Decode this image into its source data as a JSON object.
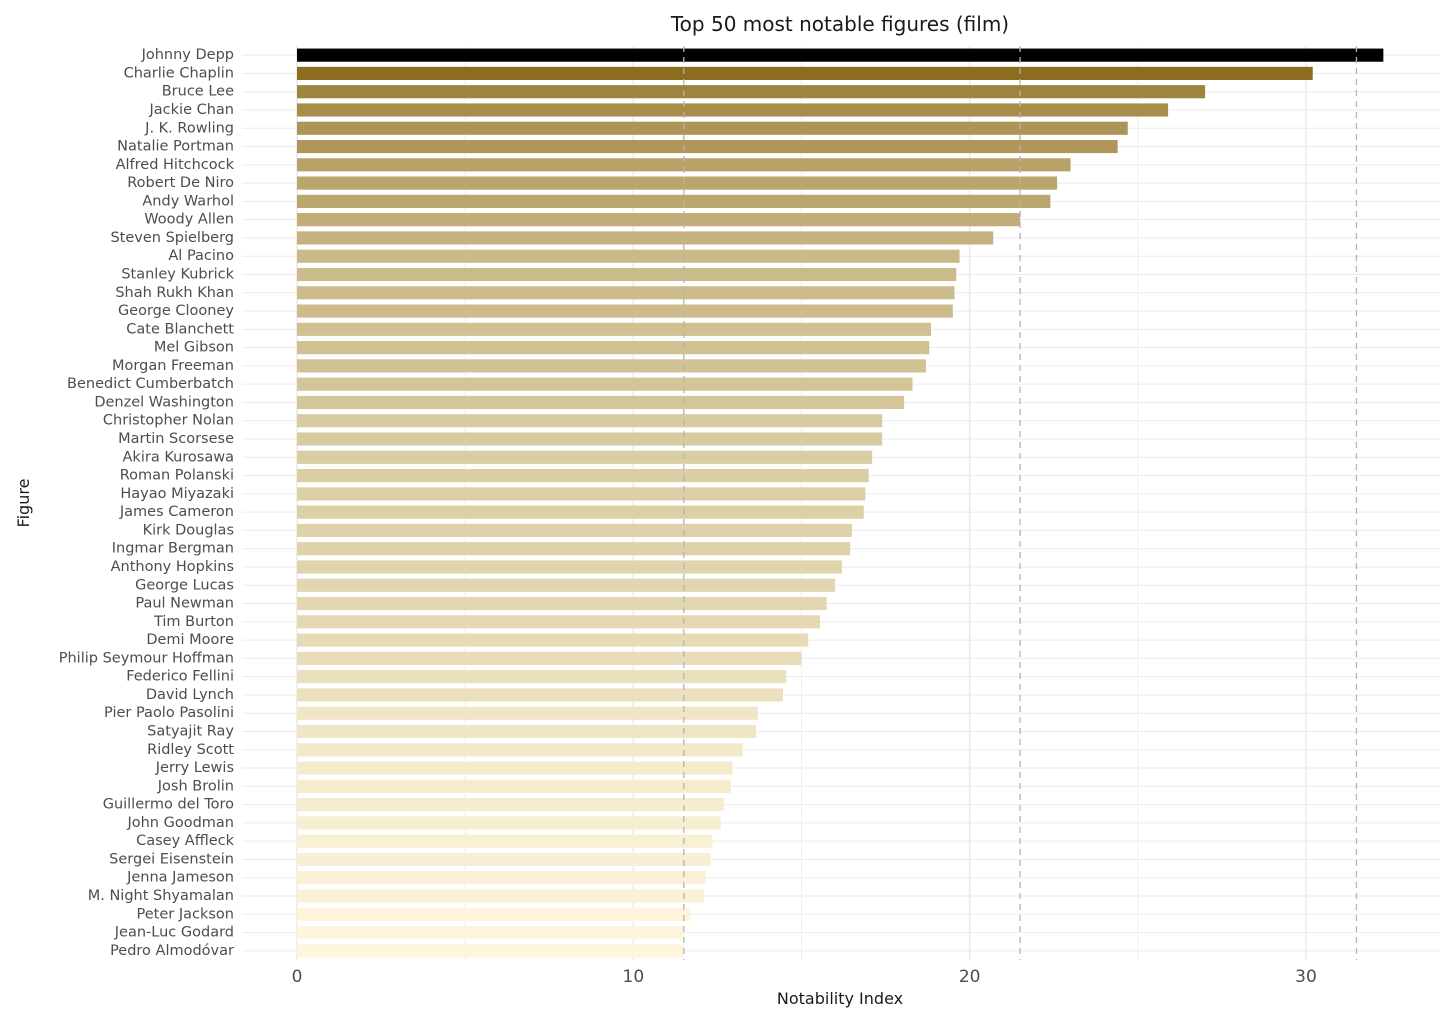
{
  "chart_data": {
    "type": "bar",
    "orientation": "horizontal",
    "title": "Top 50 most notable figures (film)",
    "xlabel": "Notability Index",
    "ylabel": "Figure",
    "xlim": [
      0,
      33.9
    ],
    "xticks": [
      0,
      10,
      20,
      30
    ],
    "xtick_labels": [
      "0",
      "10",
      "20",
      "30"
    ],
    "grid": true,
    "reference_lines": [
      11.5,
      21.5,
      31.5
    ],
    "colors": {
      "top": "#000000",
      "dark": "#8c6d1f",
      "light": "#fdf6dc",
      "grid": "#ebebeb",
      "ref": "#b3b3b3"
    },
    "categories": [
      "Johnny Depp",
      "Charlie Chaplin",
      "Bruce Lee",
      "Jackie Chan",
      "J. K. Rowling",
      "Natalie Portman",
      "Alfred Hitchcock",
      "Robert De Niro",
      "Andy Warhol",
      "Woody Allen",
      "Steven Spielberg",
      "Al Pacino",
      "Stanley Kubrick",
      "Shah Rukh Khan",
      "George Clooney",
      "Cate Blanchett",
      "Mel Gibson",
      "Morgan Freeman",
      "Benedict Cumberbatch",
      "Denzel Washington",
      "Christopher Nolan",
      "Martin Scorsese",
      "Akira Kurosawa",
      "Roman Polanski",
      "Hayao Miyazaki",
      "James Cameron",
      "Kirk Douglas",
      "Ingmar Bergman",
      "Anthony Hopkins",
      "George Lucas",
      "Paul Newman",
      "Tim Burton",
      "Demi Moore",
      "Philip Seymour Hoffman",
      "Federico Fellini",
      "David Lynch",
      "Pier Paolo Pasolini",
      "Satyajit Ray",
      "Ridley Scott",
      "Jerry Lewis",
      "Josh Brolin",
      "Guillermo del Toro",
      "John Goodman",
      "Casey Affleck",
      "Sergei Eisenstein",
      "Jenna Jameson",
      "M. Night Shyamalan",
      "Peter Jackson",
      "Jean-Luc Godard",
      "Pedro Almodóvar"
    ],
    "values": [
      32.3,
      30.2,
      27.0,
      25.9,
      24.7,
      24.4,
      23.0,
      22.6,
      22.4,
      21.5,
      20.7,
      19.7,
      19.6,
      19.55,
      19.5,
      18.85,
      18.8,
      18.7,
      18.3,
      18.05,
      17.4,
      17.4,
      17.1,
      17.0,
      16.9,
      16.85,
      16.5,
      16.45,
      16.2,
      16.0,
      15.75,
      15.55,
      15.2,
      15.0,
      14.55,
      14.45,
      13.7,
      13.65,
      13.25,
      12.95,
      12.9,
      12.7,
      12.6,
      12.35,
      12.3,
      12.15,
      12.1,
      11.7,
      11.5,
      11.5
    ]
  }
}
